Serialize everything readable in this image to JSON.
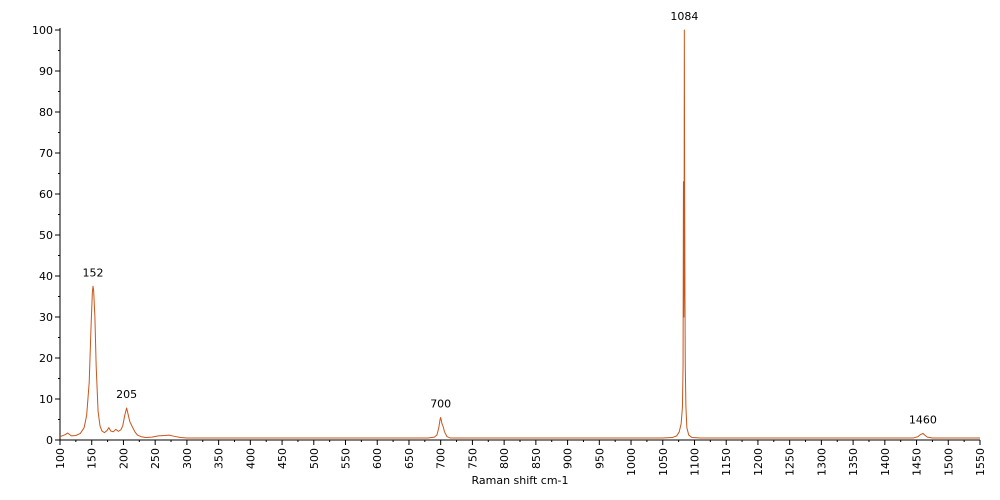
{
  "chart_data": {
    "type": "line",
    "title": "",
    "xlabel": "Raman shift cm-1",
    "ylabel": "",
    "xlim": [
      100,
      1550
    ],
    "ylim": [
      0,
      100
    ],
    "x_ticks": [
      100,
      150,
      200,
      250,
      300,
      350,
      400,
      450,
      500,
      550,
      600,
      650,
      700,
      750,
      800,
      850,
      900,
      950,
      1000,
      1050,
      1100,
      1150,
      1200,
      1250,
      1300,
      1350,
      1400,
      1450,
      1500,
      1550
    ],
    "y_ticks": [
      0,
      10,
      20,
      30,
      40,
      50,
      60,
      70,
      80,
      90,
      100
    ],
    "grid": false,
    "line_color": "#c8561a",
    "series": [
      {
        "name": "",
        "points": [
          [
            100,
            0.8
          ],
          [
            108,
            1.3
          ],
          [
            112,
            1.7
          ],
          [
            118,
            1.0
          ],
          [
            125,
            1.1
          ],
          [
            132,
            1.6
          ],
          [
            138,
            3.0
          ],
          [
            142,
            6.0
          ],
          [
            146,
            14.0
          ],
          [
            149,
            28.0
          ],
          [
            151,
            36.0
          ],
          [
            152,
            37.5
          ],
          [
            153,
            36.5
          ],
          [
            155,
            30.0
          ],
          [
            157,
            18.0
          ],
          [
            160,
            7.0
          ],
          [
            163,
            3.5
          ],
          [
            166,
            2.2
          ],
          [
            170,
            1.8
          ],
          [
            174,
            2.3
          ],
          [
            177,
            3.0
          ],
          [
            180,
            2.2
          ],
          [
            184,
            2.0
          ],
          [
            188,
            2.6
          ],
          [
            192,
            2.1
          ],
          [
            196,
            2.5
          ],
          [
            199,
            3.5
          ],
          [
            202,
            6.0
          ],
          [
            205,
            7.8
          ],
          [
            207,
            6.5
          ],
          [
            210,
            4.5
          ],
          [
            214,
            3.2
          ],
          [
            218,
            2.0
          ],
          [
            222,
            1.2
          ],
          [
            228,
            0.8
          ],
          [
            235,
            0.6
          ],
          [
            245,
            0.7
          ],
          [
            255,
            1.0
          ],
          [
            265,
            1.1
          ],
          [
            272,
            1.2
          ],
          [
            280,
            0.9
          ],
          [
            290,
            0.6
          ],
          [
            300,
            0.5
          ],
          [
            350,
            0.5
          ],
          [
            400,
            0.5
          ],
          [
            450,
            0.5
          ],
          [
            500,
            0.5
          ],
          [
            550,
            0.5
          ],
          [
            600,
            0.5
          ],
          [
            650,
            0.5
          ],
          [
            680,
            0.5
          ],
          [
            690,
            0.7
          ],
          [
            694,
            1.2
          ],
          [
            697,
            3.0
          ],
          [
            699,
            5.0
          ],
          [
            700,
            5.5
          ],
          [
            702,
            4.0
          ],
          [
            704,
            3.2
          ],
          [
            706,
            2.0
          ],
          [
            710,
            0.8
          ],
          [
            715,
            0.5
          ],
          [
            800,
            0.5
          ],
          [
            900,
            0.5
          ],
          [
            1000,
            0.5
          ],
          [
            1050,
            0.5
          ],
          [
            1065,
            0.6
          ],
          [
            1072,
            1.0
          ],
          [
            1076,
            2.0
          ],
          [
            1079,
            4.0
          ],
          [
            1081,
            8.0
          ],
          [
            1082,
            18.0
          ],
          [
            1082.6,
            63.0
          ],
          [
            1083.2,
            30.0
          ],
          [
            1083.6,
            40.0
          ],
          [
            1084,
            100.0
          ],
          [
            1084.5,
            60.0
          ],
          [
            1085,
            35.0
          ],
          [
            1085.5,
            18.0
          ],
          [
            1086.5,
            8.0
          ],
          [
            1088,
            3.0
          ],
          [
            1091,
            1.2
          ],
          [
            1096,
            0.6
          ],
          [
            1110,
            0.5
          ],
          [
            1200,
            0.5
          ],
          [
            1300,
            0.5
          ],
          [
            1400,
            0.5
          ],
          [
            1445,
            0.5
          ],
          [
            1452,
            0.8
          ],
          [
            1456,
            1.3
          ],
          [
            1460,
            1.6
          ],
          [
            1463,
            1.2
          ],
          [
            1467,
            0.7
          ],
          [
            1475,
            0.5
          ],
          [
            1500,
            0.5
          ],
          [
            1550,
            0.5
          ]
        ]
      }
    ],
    "annotations": [
      {
        "x": 152,
        "y": 37.5,
        "text": "152"
      },
      {
        "x": 205,
        "y": 7.8,
        "text": "205"
      },
      {
        "x": 700,
        "y": 5.5,
        "text": "700"
      },
      {
        "x": 1084,
        "y": 100,
        "text": "1084"
      },
      {
        "x": 1460,
        "y": 1.6,
        "text": "1460"
      }
    ]
  }
}
